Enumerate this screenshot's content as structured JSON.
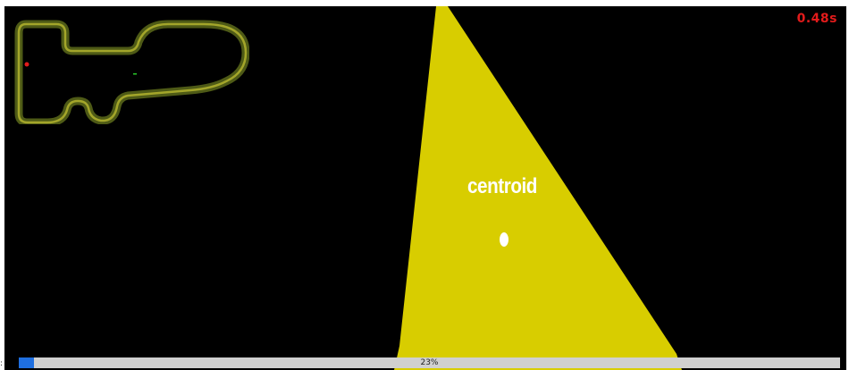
{
  "timer": {
    "label": "0.48s",
    "color": "#e21b1b"
  },
  "camera": {
    "annotation": "centroid",
    "lane_color": "#d8cd00",
    "background": "#000000",
    "marker_color": "#ffffff"
  },
  "minimap": {
    "track_outer": "#4e5a16",
    "track_stripe": "#a3a52a",
    "car_color": "#e21b1b",
    "goal_color": "#29c629"
  },
  "progress": {
    "value": 0.23,
    "label": "23%",
    "fill_color": "#1f6fe0",
    "track_color": "#d0d0d0"
  },
  "edge_glyph": ":"
}
